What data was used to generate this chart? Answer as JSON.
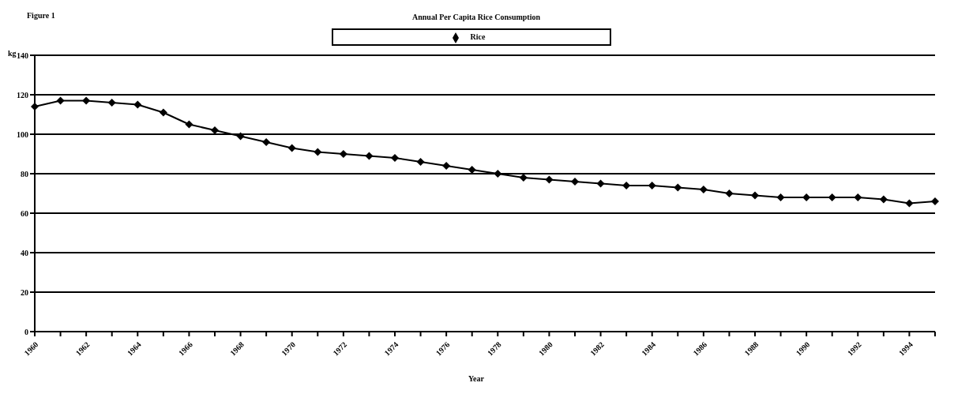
{
  "chart_data": {
    "type": "line",
    "title": "Annual Per Capita Rice Consumption",
    "annotations": [
      "Figure 1"
    ],
    "xlabel": "Year",
    "ylabel": "kg",
    "categories": [
      "1960",
      null,
      "1962",
      null,
      "1964",
      null,
      "1966",
      null,
      "1968",
      null,
      "1970",
      null,
      "1972",
      null,
      "1974",
      null,
      "1976",
      null,
      "1978",
      null,
      "1980",
      null,
      "1982",
      null,
      "1984",
      null,
      "1986",
      null,
      "1988",
      null,
      "1990",
      null,
      "1992",
      null,
      "1994",
      null
    ],
    "series": [
      {
        "name": "Rice",
        "color": "#000000",
        "values": [
          114,
          117,
          117,
          116,
          115,
          111,
          105,
          102,
          99,
          96,
          93,
          91,
          90,
          89,
          88,
          86,
          84,
          82,
          80,
          78,
          77,
          76,
          75,
          74,
          74,
          73,
          72,
          70,
          69,
          68,
          68,
          68,
          68,
          67,
          65,
          66
        ]
      }
    ],
    "ylim": [
      0,
      140
    ],
    "yticks": [
      0,
      20,
      40,
      60,
      80,
      100,
      120,
      140
    ],
    "grid": "y",
    "legend": "top",
    "marker": "diamond",
    "line_style": "solid"
  }
}
